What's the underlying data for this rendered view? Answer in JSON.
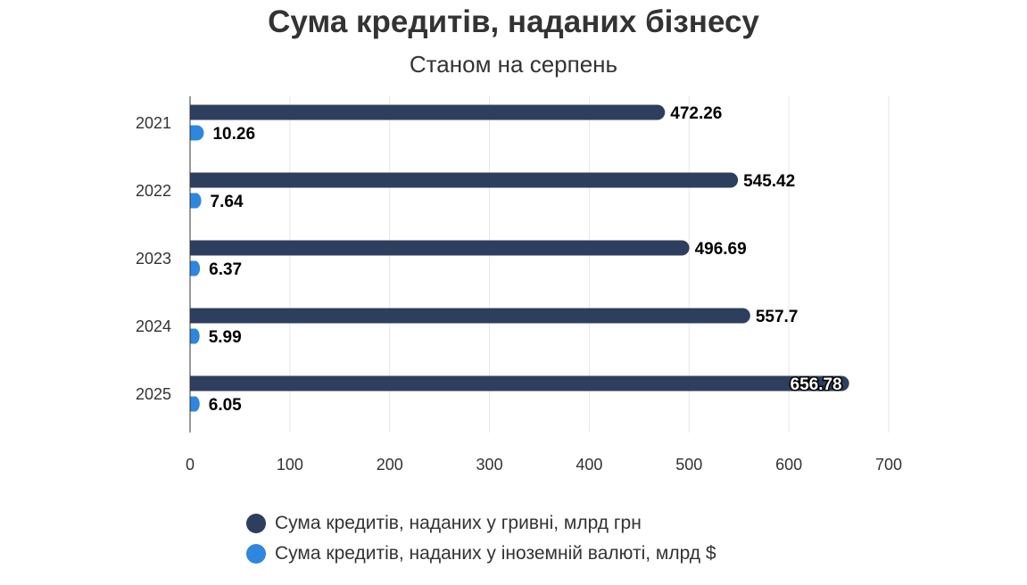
{
  "chart_data": {
    "type": "bar",
    "orientation": "horizontal",
    "title": "Сума кредитів, наданих бізнесу",
    "subtitle": "Станом на серпень",
    "categories": [
      "2021",
      "2022",
      "2023",
      "2024",
      "2025"
    ],
    "series": [
      {
        "name": "Сума кредитів, наданих у гривні, млрд грн",
        "color": "#2d3e5e",
        "values": [
          472.26,
          545.42,
          496.69,
          557.7,
          656.78
        ],
        "labels": [
          "472.26",
          "545.42",
          "496.69",
          "557.7",
          "656.78"
        ]
      },
      {
        "name": "Сума кредитів, наданих у іноземній валюті, млрд $",
        "color": "#2f86de",
        "values": [
          10.26,
          7.64,
          6.37,
          5.99,
          6.05
        ],
        "labels": [
          "10.26",
          "7.64",
          "6.37",
          "5.99",
          "6.05"
        ]
      }
    ],
    "xlim": [
      0,
      700
    ],
    "xticks": [
      "0",
      "100",
      "200",
      "300",
      "400",
      "500",
      "600",
      "700"
    ],
    "grid": "vertical",
    "legend": "bottom"
  }
}
